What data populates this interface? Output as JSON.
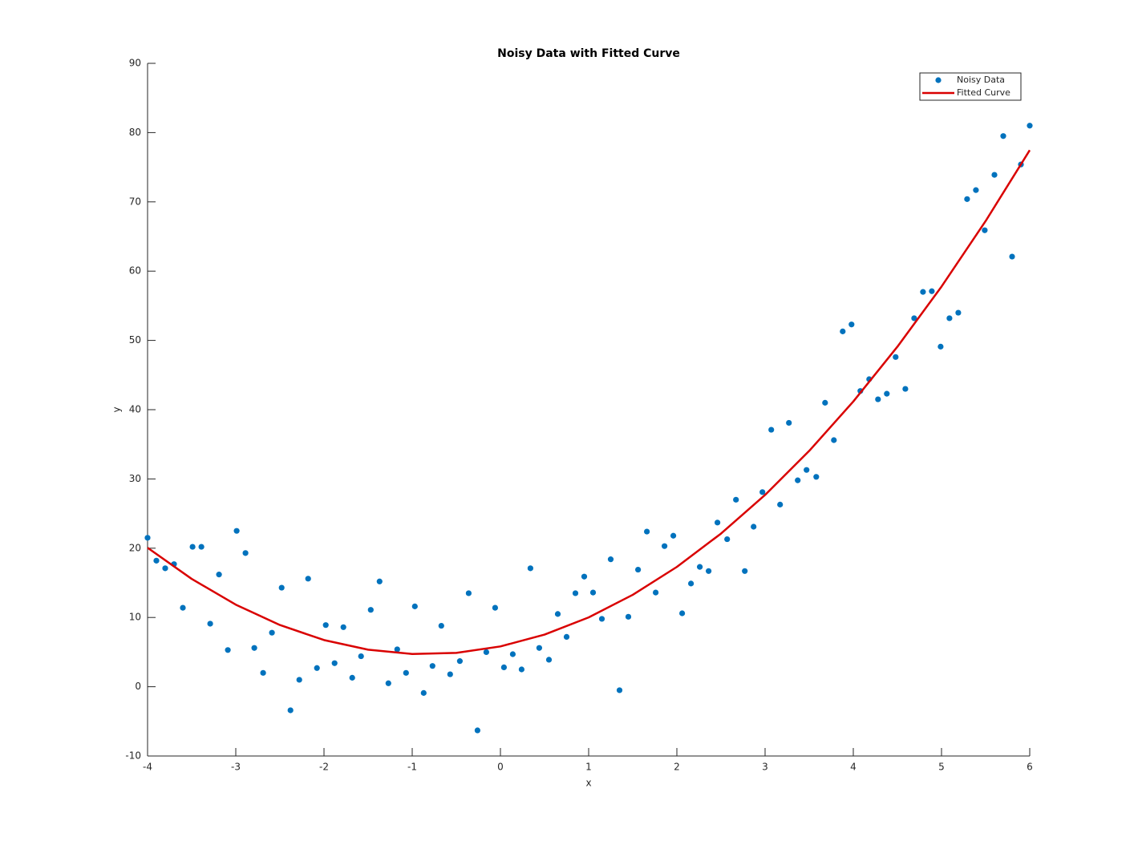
{
  "chart_data": {
    "type": "scatter",
    "title": "Noisy Data with Fitted Curve",
    "xlabel": "x",
    "ylabel": "y",
    "xlim": [
      -4,
      6
    ],
    "ylim": [
      -10,
      90
    ],
    "xticks": [
      -4,
      -3,
      -2,
      -1,
      0,
      1,
      2,
      3,
      4,
      5,
      6
    ],
    "yticks": [
      -10,
      0,
      10,
      20,
      30,
      40,
      50,
      60,
      70,
      80,
      90
    ],
    "grid": false,
    "legend": "upper right",
    "series": [
      {
        "name": "Noisy Data",
        "type": "scatter",
        "color": "#0072bd",
        "x": [
          -4,
          -3.9,
          -3.8,
          -3.7,
          -3.6,
          -3.49,
          -3.39,
          -3.29,
          -3.19,
          -3.09,
          -2.99,
          -2.89,
          -2.79,
          -2.69,
          -2.59,
          -2.48,
          -2.38,
          -2.28,
          -2.18,
          -2.08,
          -1.98,
          -1.88,
          -1.78,
          -1.68,
          -1.58,
          -1.47,
          -1.37,
          -1.27,
          -1.17,
          -1.07,
          -0.97,
          -0.87,
          -0.77,
          -0.67,
          -0.57,
          -0.46,
          -0.36,
          -0.26,
          -0.16,
          -0.06,
          0.04,
          0.14,
          0.24,
          0.34,
          0.44,
          0.55,
          0.65,
          0.75,
          0.85,
          0.95,
          1.05,
          1.15,
          1.25,
          1.35,
          1.45,
          1.56,
          1.66,
          1.76,
          1.86,
          1.96,
          2.06,
          2.16,
          2.26,
          2.36,
          2.46,
          2.57,
          2.67,
          2.77,
          2.87,
          2.97,
          3.07,
          3.17,
          3.27,
          3.37,
          3.47,
          3.58,
          3.68,
          3.78,
          3.88,
          3.98,
          4.08,
          4.18,
          4.28,
          4.38,
          4.48,
          4.59,
          4.69,
          4.79,
          4.89,
          4.99,
          5.09,
          5.19,
          5.29,
          5.39,
          5.49,
          5.6,
          5.7,
          5.8,
          5.9,
          6
        ],
        "values": [
          21.5,
          18.2,
          17.1,
          17.7,
          11.4,
          20.2,
          20.2,
          9.1,
          16.2,
          5.3,
          22.5,
          19.3,
          5.6,
          2.0,
          7.8,
          14.3,
          -3.4,
          1.0,
          15.6,
          2.7,
          8.9,
          3.4,
          8.6,
          1.3,
          4.4,
          11.1,
          15.2,
          0.5,
          5.4,
          2.0,
          11.6,
          -0.9,
          3.0,
          8.8,
          1.8,
          3.7,
          13.5,
          -6.3,
          5.0,
          11.4,
          2.8,
          4.7,
          2.5,
          17.1,
          5.6,
          3.9,
          10.5,
          7.2,
          13.5,
          15.9,
          13.6,
          9.8,
          18.4,
          -0.5,
          10.1,
          16.9,
          22.4,
          13.6,
          20.3,
          21.8,
          10.6,
          14.9,
          17.3,
          16.7,
          23.7,
          21.3,
          27.0,
          16.7,
          23.1,
          28.1,
          37.1,
          26.3,
          38.1,
          29.8,
          31.3,
          30.3,
          41.0,
          35.6,
          51.3,
          52.3,
          42.7,
          44.4,
          41.5,
          42.3,
          47.6,
          43.0,
          53.2,
          57.0,
          57.1,
          49.1,
          53.2,
          54.0,
          70.4,
          71.7,
          65.9,
          73.9,
          79.5,
          62.1,
          75.4,
          81.0
        ]
      },
      {
        "name": "Fitted Curve",
        "type": "line",
        "color": "#d90000",
        "x": [
          -4,
          -3.5,
          -3,
          -2.5,
          -2,
          -1.5,
          -1,
          -0.5,
          0,
          0.5,
          1,
          1.5,
          2,
          2.5,
          3,
          3.5,
          4,
          4.5,
          5,
          5.5,
          6
        ],
        "values": [
          20.06,
          15.57,
          11.85,
          8.91,
          6.74,
          5.35,
          4.73,
          4.89,
          5.82,
          7.53,
          10.01,
          13.27,
          17.3,
          22.11,
          27.69,
          34.05,
          41.18,
          49.09,
          57.77,
          67.23,
          77.46
        ]
      }
    ]
  }
}
